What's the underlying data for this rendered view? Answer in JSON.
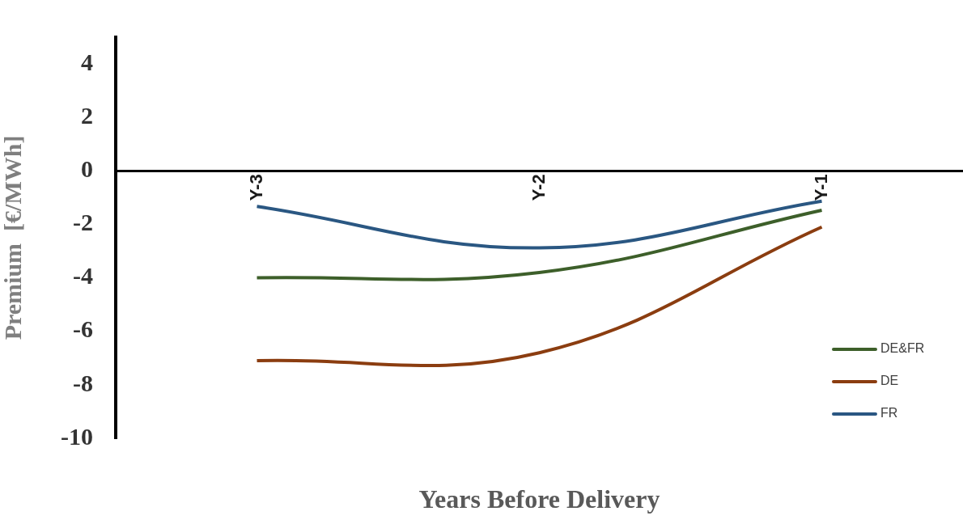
{
  "chart_data": {
    "type": "line",
    "xlabel": "Years Before Delivery",
    "ylabel": "Premium  [€/MWh]",
    "categories": [
      "Y-3",
      "Y-2",
      "Y-1"
    ],
    "series": [
      {
        "name": "DE&FR",
        "color": "#3d5f2a",
        "values": [
          -4.0,
          -3.8,
          -1.47
        ]
      },
      {
        "name": "DE",
        "color": "#8b3d10",
        "values": [
          -7.1,
          -6.8,
          -2.1
        ]
      },
      {
        "name": "FR",
        "color": "#2a5782",
        "values": [
          -1.33,
          -2.88,
          -1.13
        ]
      }
    ],
    "ylim": [
      -10,
      5
    ],
    "yticks": [
      -10,
      -8,
      -6,
      -4,
      -2,
      0,
      2,
      4
    ],
    "grid": false,
    "legend": "bottom right",
    "marker": "none",
    "line_style": "solid"
  }
}
